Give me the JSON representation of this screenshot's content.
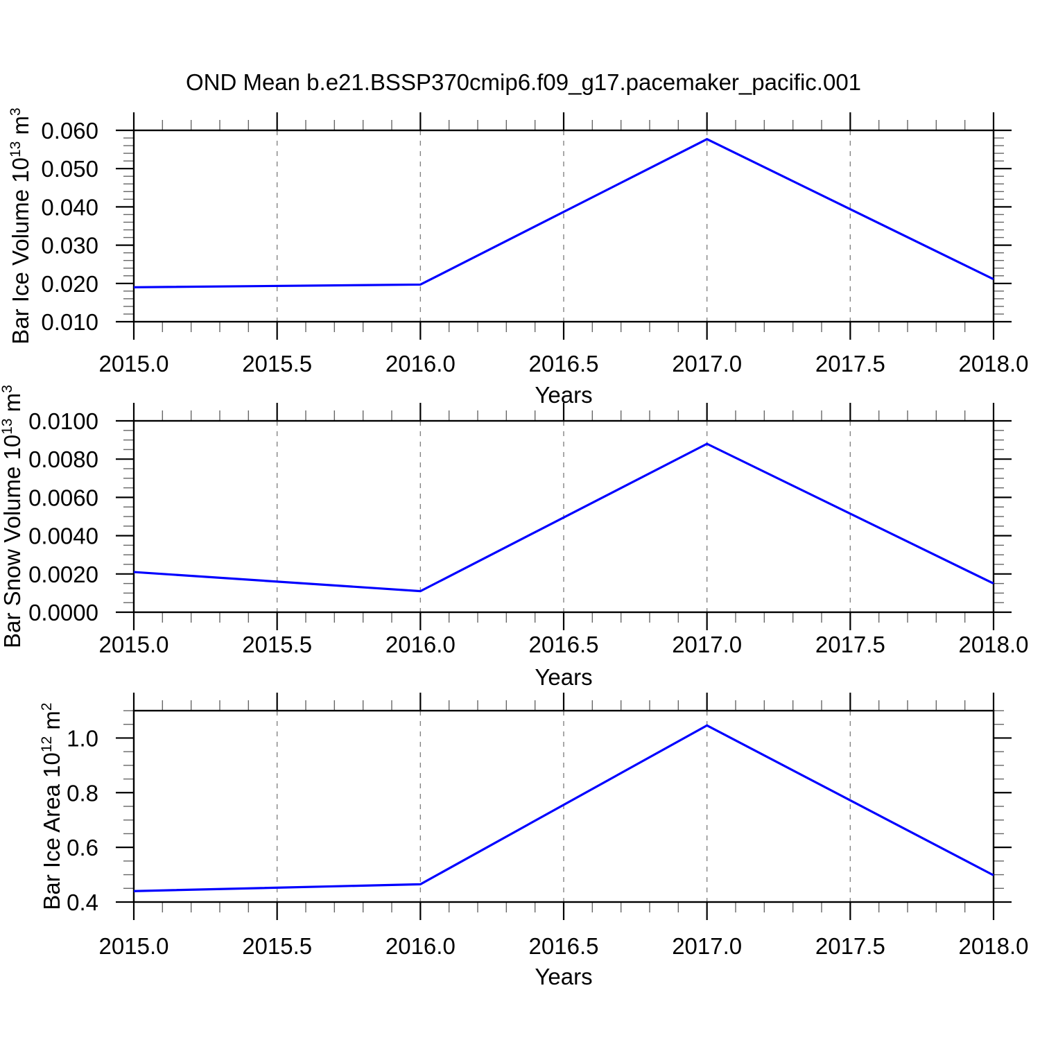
{
  "title": "OND Mean b.e21.BSSP370cmip6.f09_g17.pacemaker_pacific.001",
  "colors": {
    "line": "#0000ff",
    "grid": "#848484",
    "axis": "#000000"
  },
  "chart_data": [
    {
      "type": "line",
      "ylabel_text": "Bar Ice Volume 10^13 m^3",
      "ylabel": {
        "base1": "Bar Ice Volume 10",
        "sup1": "13",
        "base2": " m",
        "sup2": "3"
      },
      "xlabel": "Years",
      "x": [
        2015.0,
        2016.0,
        2017.0,
        2018.0
      ],
      "values": [
        0.019,
        0.0197,
        0.0577,
        0.0211
      ],
      "xlim": [
        2015.0,
        2018.0
      ],
      "ylim": [
        0.01,
        0.06
      ],
      "xticks": [
        2015.0,
        2015.5,
        2016.0,
        2016.5,
        2017.0,
        2017.5,
        2018.0
      ],
      "xtick_labels": [
        "2015.0",
        "2015.5",
        "2016.0",
        "2016.5",
        "2017.0",
        "2017.5",
        "2018.0"
      ],
      "x_minor_step": 0.1,
      "yticks": [
        0.01,
        0.02,
        0.03,
        0.04,
        0.05,
        0.06
      ],
      "ytick_labels": [
        "0.010",
        "0.020",
        "0.030",
        "0.040",
        "0.050",
        "0.060"
      ],
      "y_minor_step": 0.002,
      "gridlines_x": [
        2015.5,
        2016.0,
        2016.5,
        2017.0,
        2017.5
      ],
      "grid": true,
      "line_color": "#0000ff"
    },
    {
      "type": "line",
      "ylabel_text": "Bar Snow Volume 10^13 m^3",
      "ylabel": {
        "base1": "Bar Snow Volume 10",
        "sup1": "13",
        "base2": " m",
        "sup2": "3"
      },
      "xlabel": "Years",
      "x": [
        2015.0,
        2016.0,
        2017.0,
        2018.0
      ],
      "values": [
        0.0021,
        0.0011,
        0.0088,
        0.0015
      ],
      "xlim": [
        2015.0,
        2018.0
      ],
      "ylim": [
        0.0,
        0.01
      ],
      "xticks": [
        2015.0,
        2015.5,
        2016.0,
        2016.5,
        2017.0,
        2017.5,
        2018.0
      ],
      "xtick_labels": [
        "2015.0",
        "2015.5",
        "2016.0",
        "2016.5",
        "2017.0",
        "2017.5",
        "2018.0"
      ],
      "x_minor_step": 0.1,
      "yticks": [
        0.0,
        0.002,
        0.004,
        0.006,
        0.008,
        0.01
      ],
      "ytick_labels": [
        "0.0000",
        "0.0020",
        "0.0040",
        "0.0060",
        "0.0080",
        "0.0100"
      ],
      "y_minor_step": 0.0005,
      "gridlines_x": [
        2015.5,
        2016.0,
        2016.5,
        2017.0,
        2017.5
      ],
      "grid": true,
      "line_color": "#0000ff"
    },
    {
      "type": "line",
      "ylabel_text": "Bar Ice Area 10^12 m^2",
      "ylabel": {
        "base1": "Bar Ice Area 10",
        "sup1": "12",
        "base2": " m",
        "sup2": "2"
      },
      "xlabel": "Years",
      "x": [
        2015.0,
        2016.0,
        2017.0,
        2018.0
      ],
      "values": [
        0.44,
        0.465,
        1.046,
        0.498
      ],
      "xlim": [
        2015.0,
        2018.0
      ],
      "ylim": [
        0.4,
        1.1
      ],
      "xticks": [
        2015.0,
        2015.5,
        2016.0,
        2016.5,
        2017.0,
        2017.5,
        2018.0
      ],
      "xtick_labels": [
        "2015.0",
        "2015.5",
        "2016.0",
        "2016.5",
        "2017.0",
        "2017.5",
        "2018.0"
      ],
      "x_minor_step": 0.1,
      "yticks": [
        0.4,
        0.6,
        0.8,
        1.0
      ],
      "ytick_labels": [
        "0.4",
        "0.6",
        "0.8",
        "1.0"
      ],
      "y_minor_step": 0.05,
      "gridlines_x": [
        2015.5,
        2016.0,
        2016.5,
        2017.0,
        2017.5
      ],
      "grid": true,
      "line_color": "#0000ff"
    }
  ]
}
